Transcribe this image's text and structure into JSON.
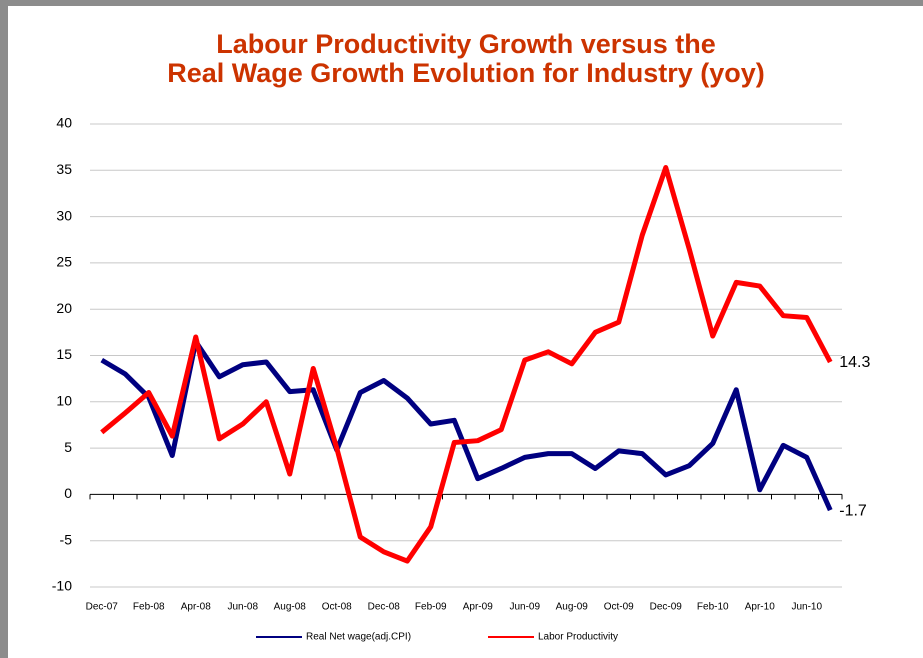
{
  "chart_data": {
    "type": "line",
    "title": [
      "Labour Productivity Growth versus the",
      "Real Wage Growth Evolution for Industry (yoy)"
    ],
    "categories": [
      "Dec-07",
      null,
      "Feb-08",
      null,
      "Apr-08",
      null,
      "Jun-08",
      null,
      "Aug-08",
      null,
      "Oct-08",
      null,
      "Dec-08",
      null,
      "Feb-09",
      null,
      "Apr-09",
      null,
      "Jun-09",
      null,
      "Aug-09",
      null,
      "Oct-09",
      null,
      "Dec-09",
      null,
      "Feb-10",
      null,
      "Apr-10",
      null,
      "Jun-10",
      null
    ],
    "series": [
      {
        "name": "Real Net wage(adj.CPI)",
        "color": "#000080",
        "values": [
          14.5,
          13,
          10.5,
          4.2,
          16.5,
          12.7,
          14,
          14.3,
          11.1,
          11.3,
          4.8,
          11,
          12.3,
          10.4,
          7.6,
          8,
          1.7,
          2.8,
          4,
          4.4,
          4.4,
          2.8,
          4.7,
          4.4,
          2.1,
          3.1,
          5.5,
          11.3,
          0.5,
          5.3,
          4,
          -1.7
        ]
      },
      {
        "name": "Labor Productivity",
        "color": "#ff0000",
        "values": [
          6.7,
          8.8,
          11,
          6.3,
          17,
          6,
          7.6,
          10,
          2.2,
          13.6,
          5,
          -4.6,
          -6.2,
          -7.2,
          -3.5,
          5.6,
          5.8,
          7,
          14.5,
          15.4,
          14.1,
          17.5,
          18.6,
          28,
          35.3,
          26.5,
          17.1,
          22.9,
          22.5,
          19.3,
          19.1,
          14.3
        ]
      }
    ],
    "ylim": [
      -10,
      40
    ],
    "yticks": [
      -10,
      -5,
      0,
      5,
      10,
      15,
      20,
      25,
      30,
      35,
      40
    ],
    "grid": true
  }
}
